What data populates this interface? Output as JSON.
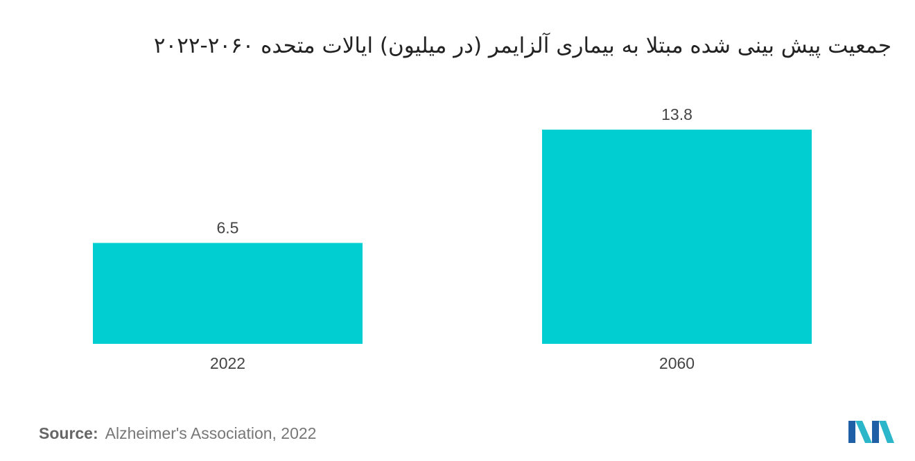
{
  "title": "جمعیت پیش بینی شده مبتلا به بیماری آلزایمر (در میلیون) ایالات متحده ۲۰۶۰-۲۰۲۲",
  "source": {
    "label": "Source:",
    "text": "Alzheimer's Association, 2022"
  },
  "logo": {
    "icon": "mordor-intelligence-logo-icon",
    "colors": [
      "#1f5fa5",
      "#2bb6c9"
    ]
  },
  "colors": {
    "bar": "#00ced1",
    "text": "#444444"
  },
  "chart_data": {
    "type": "bar",
    "categories": [
      "2022",
      "2060"
    ],
    "values": [
      6.5,
      13.8
    ],
    "value_labels": [
      "6.5",
      "13.8"
    ],
    "title": "جمعیت پیش بینی شده مبتلا به بیماری آلزایمر (در میلیون) ایالات متحده ۲۰۶۰-۲۰۲۲",
    "xlabel": "",
    "ylabel": "",
    "ylim": [
      0,
      13.8
    ],
    "grid": false,
    "legend": "none"
  }
}
